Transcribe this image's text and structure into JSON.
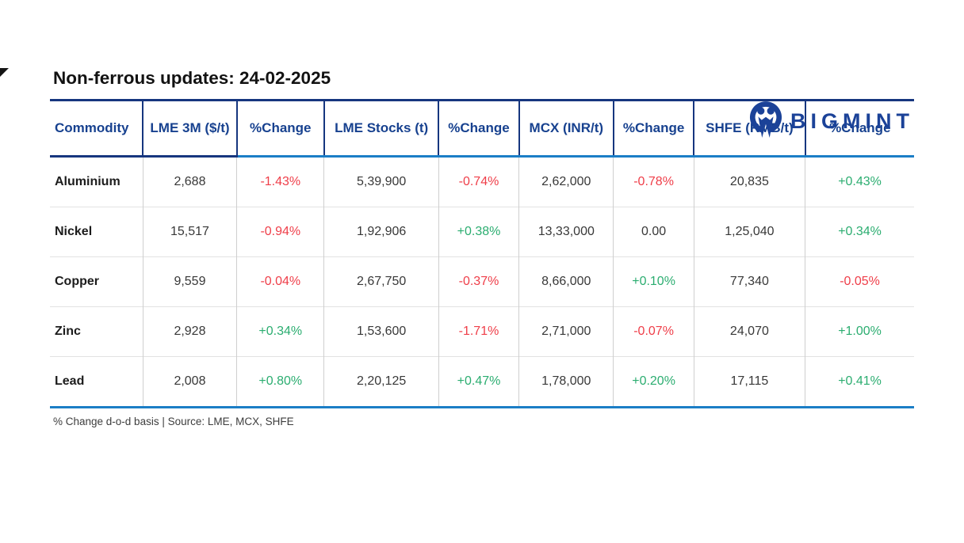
{
  "brand": {
    "name": "BIGMINT",
    "color": "#1b4298"
  },
  "title": "Non-ferrous updates: 24-02-2025",
  "footnote": "% Change d-o-d basis | Source: LME, MCX, SHFE",
  "colors": {
    "positive": "#2bad70",
    "negative": "#ef3e49",
    "flat": "#383838",
    "header_text": "#17418f",
    "rule_navy": "#16367f",
    "rule_blue": "#1b7ec6",
    "brand_blue": "#1b4298"
  },
  "chart_data": {
    "type": "table",
    "title": "Non-ferrous updates: 24-02-2025",
    "columns": [
      "Commodity",
      "LME 3M ($/t)",
      "%Change",
      "LME Stocks (t)",
      "%Change",
      "MCX (INR/t)",
      "%Change",
      "SHFE (RMB/t)",
      "%Change"
    ],
    "rows": [
      {
        "commodity": "Aluminium",
        "cells": [
          {
            "v": "2,688"
          },
          {
            "v": "-1.43%",
            "dir": "down"
          },
          {
            "v": "5,39,900"
          },
          {
            "v": "-0.74%",
            "dir": "down"
          },
          {
            "v": "2,62,000"
          },
          {
            "v": "-0.78%",
            "dir": "down"
          },
          {
            "v": "20,835"
          },
          {
            "v": "+0.43%",
            "dir": "up"
          }
        ]
      },
      {
        "commodity": "Nickel",
        "cells": [
          {
            "v": "15,517"
          },
          {
            "v": "-0.94%",
            "dir": "down"
          },
          {
            "v": "1,92,906"
          },
          {
            "v": "+0.38%",
            "dir": "up"
          },
          {
            "v": "13,33,000"
          },
          {
            "v": "0.00",
            "dir": "flat"
          },
          {
            "v": "1,25,040"
          },
          {
            "v": "+0.34%",
            "dir": "up"
          }
        ]
      },
      {
        "commodity": "Copper",
        "cells": [
          {
            "v": "9,559"
          },
          {
            "v": "-0.04%",
            "dir": "down"
          },
          {
            "v": "2,67,750"
          },
          {
            "v": "-0.37%",
            "dir": "down"
          },
          {
            "v": "8,66,000"
          },
          {
            "v": "+0.10%",
            "dir": "up"
          },
          {
            "v": "77,340"
          },
          {
            "v": "-0.05%",
            "dir": "down"
          }
        ]
      },
      {
        "commodity": "Zinc",
        "cells": [
          {
            "v": "2,928"
          },
          {
            "v": "+0.34%",
            "dir": "up"
          },
          {
            "v": "1,53,600"
          },
          {
            "v": "-1.71%",
            "dir": "down"
          },
          {
            "v": "2,71,000"
          },
          {
            "v": "-0.07%",
            "dir": "down"
          },
          {
            "v": "24,070"
          },
          {
            "v": "+1.00%",
            "dir": "up"
          }
        ]
      },
      {
        "commodity": "Lead",
        "cells": [
          {
            "v": "2,008"
          },
          {
            "v": "+0.80%",
            "dir": "up"
          },
          {
            "v": "2,20,125"
          },
          {
            "v": "+0.47%",
            "dir": "up"
          },
          {
            "v": "1,78,000"
          },
          {
            "v": "+0.20%",
            "dir": "up"
          },
          {
            "v": "17,115"
          },
          {
            "v": "+0.41%",
            "dir": "up"
          }
        ]
      }
    ]
  }
}
